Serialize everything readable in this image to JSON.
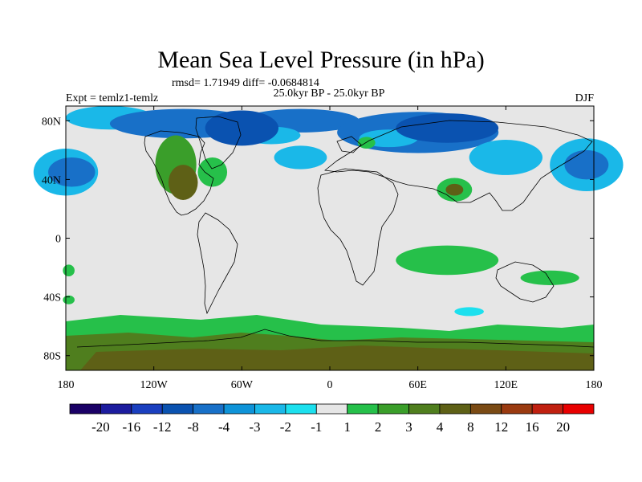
{
  "chart_data": {
    "type": "heatmap",
    "title": "Mean Sea Level Pressure (in hPa)",
    "stats": "rmsd= 1.71949 diff= -0.0684814",
    "left_label": "Expt = temlz1-temlz",
    "center_label": "25.0kyr BP - 25.0kyr BP",
    "right_label": "DJF",
    "xlim": [
      -180,
      180
    ],
    "ylim": [
      -90,
      90
    ],
    "x_ticks": [
      {
        "v": -180,
        "label": "180"
      },
      {
        "v": -120,
        "label": "120W"
      },
      {
        "v": -60,
        "label": "60W"
      },
      {
        "v": 0,
        "label": "0"
      },
      {
        "v": 60,
        "label": "60E"
      },
      {
        "v": 120,
        "label": "120E"
      },
      {
        "v": 180,
        "label": "180"
      }
    ],
    "y_ticks": [
      {
        "v": 80,
        "label": "80N"
      },
      {
        "v": 40,
        "label": "40N"
      },
      {
        "v": 0,
        "label": "0"
      },
      {
        "v": -40,
        "label": "40S"
      },
      {
        "v": -80,
        "label": "80S"
      }
    ],
    "colorbar": {
      "colors": [
        "#1a0066",
        "#1c1c9e",
        "#1a3fbf",
        "#0a52b0",
        "#1870c8",
        "#0e93d8",
        "#1ab8e8",
        "#1ce0ee",
        "#e6e6e6",
        "#26c04a",
        "#3a9e2a",
        "#4f7e1e",
        "#5e6016",
        "#7a4a14",
        "#9a3a10",
        "#c02010",
        "#e80000"
      ],
      "labels": [
        "-20",
        "-16",
        "-12",
        "-8",
        "-4",
        "-3",
        "-2",
        "-1",
        "1",
        "2",
        "3",
        "4",
        "8",
        "12",
        "16",
        "20"
      ]
    },
    "regions": [
      {
        "color": "#1ab8e8",
        "lon": -150,
        "lat": 82,
        "rlon": 30,
        "rlat": 8
      },
      {
        "color": "#1870c8",
        "lon": -100,
        "lat": 78,
        "rlon": 50,
        "rlat": 10
      },
      {
        "color": "#1870c8",
        "lon": -20,
        "lat": 80,
        "rlon": 40,
        "rlat": 8
      },
      {
        "color": "#1870c8",
        "lon": 60,
        "lat": 72,
        "rlon": 55,
        "rlat": 14
      },
      {
        "color": "#1ab8e8",
        "lon": -40,
        "lat": 70,
        "rlon": 20,
        "rlat": 6
      },
      {
        "color": "#1ab8e8",
        "lon": 40,
        "lat": 68,
        "rlon": 20,
        "rlat": 6
      },
      {
        "color": "#0a52b0",
        "lon": -60,
        "lat": 75,
        "rlon": 25,
        "rlat": 12
      },
      {
        "color": "#0a52b0",
        "lon": 80,
        "lat": 75,
        "rlon": 35,
        "rlat": 10
      },
      {
        "color": "#1ab8e8",
        "lon": -180,
        "lat": 45,
        "rlon": 22,
        "rlat": 16
      },
      {
        "color": "#1870c8",
        "lon": -176,
        "lat": 45,
        "rlon": 16,
        "rlat": 10
      },
      {
        "color": "#1ab8e8",
        "lon": 175,
        "lat": 50,
        "rlon": 25,
        "rlat": 18
      },
      {
        "color": "#1870c8",
        "lon": 175,
        "lat": 50,
        "rlon": 15,
        "rlat": 10
      },
      {
        "color": "#1ab8e8",
        "lon": 120,
        "lat": 55,
        "rlon": 25,
        "rlat": 12
      },
      {
        "color": "#1ab8e8",
        "lon": -20,
        "lat": 55,
        "rlon": 18,
        "rlat": 8
      },
      {
        "color": "#3a9e2a",
        "lon": -105,
        "lat": 50,
        "rlon": 14,
        "rlat": 20
      },
      {
        "color": "#5e6016",
        "lon": -100,
        "lat": 38,
        "rlon": 10,
        "rlat": 12
      },
      {
        "color": "#26c04a",
        "lon": -80,
        "lat": 45,
        "rlon": 10,
        "rlat": 10
      },
      {
        "color": "#26c04a",
        "lon": 25,
        "lat": 65,
        "rlon": 6,
        "rlat": 4
      },
      {
        "color": "#26c04a",
        "lon": 85,
        "lat": 33,
        "rlon": 12,
        "rlat": 8
      },
      {
        "color": "#5e6016",
        "lon": 85,
        "lat": 33,
        "rlon": 6,
        "rlat": 4
      },
      {
        "color": "#26c04a",
        "lon": 80,
        "lat": -15,
        "rlon": 35,
        "rlat": 10
      },
      {
        "color": "#26c04a",
        "lon": 150,
        "lat": -27,
        "rlon": 20,
        "rlat": 5
      },
      {
        "color": "#1ce0ee",
        "lon": 95,
        "lat": -50,
        "rlon": 10,
        "rlat": 3
      },
      {
        "color": "#26c04a",
        "lon": -178,
        "lat": -22,
        "rlon": 4,
        "rlat": 4
      },
      {
        "color": "#26c04a",
        "lon": -178,
        "lat": -42,
        "rlon": 4,
        "rlat": 3
      }
    ]
  }
}
